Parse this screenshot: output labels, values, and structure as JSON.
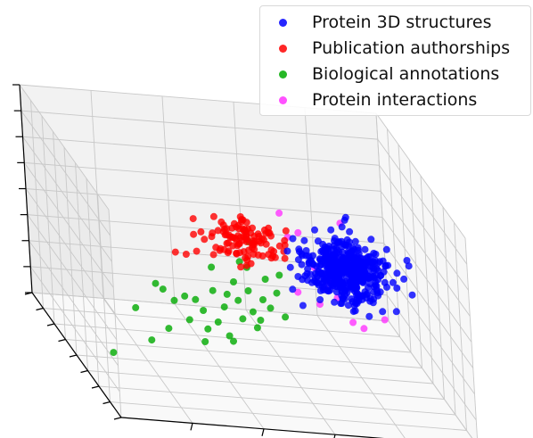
{
  "chart_data": {
    "type": "scatter",
    "projection": "3d",
    "grid": true,
    "legend_placement": "top-right",
    "title": "",
    "xlabel": "",
    "ylabel": "",
    "zlabel": "",
    "xlim": [
      0,
      10
    ],
    "ylim": [
      0,
      8
    ],
    "zlim": [
      0,
      8
    ],
    "series": [
      {
        "name": "Protein 3D structures",
        "color": "#0000ff",
        "cluster": {
          "center": [
            7.8,
            4.3,
            3.9
          ],
          "spread": [
            0.55,
            0.5,
            0.5
          ],
          "count": 460
        },
        "points": [
          [
            6.2,
            4.3,
            4.5
          ],
          [
            9.6,
            4.3,
            4.3
          ]
        ]
      },
      {
        "name": "Publication authorships",
        "color": "#ff0000",
        "cluster": {
          "center": [
            4.9,
            3.8,
            5.1
          ],
          "spread": [
            0.55,
            0.45,
            0.35
          ],
          "count": 110
        },
        "points": [
          [
            2.9,
            3.8,
            4.4
          ],
          [
            3.2,
            3.8,
            4.35
          ],
          [
            3.5,
            3.8,
            4.5
          ]
        ]
      },
      {
        "name": "Biological annotations",
        "color": "#00aa00",
        "points": [
          [
            1.6,
            3.5,
            2.3
          ],
          [
            2.0,
            3.5,
            1.1
          ],
          [
            2.2,
            3.5,
            3.3
          ],
          [
            2.5,
            3.5,
            1.6
          ],
          [
            2.7,
            3.5,
            2.7
          ],
          [
            3.1,
            3.5,
            2.0
          ],
          [
            3.3,
            3.5,
            2.8
          ],
          [
            3.5,
            3.5,
            2.4
          ],
          [
            3.6,
            3.5,
            1.7
          ],
          [
            3.8,
            3.5,
            3.2
          ],
          [
            3.9,
            3.5,
            2.0
          ],
          [
            4.1,
            3.5,
            2.6
          ],
          [
            4.2,
            3.5,
            1.5
          ],
          [
            4.4,
            3.5,
            3.6
          ],
          [
            4.5,
            3.5,
            2.9
          ],
          [
            4.6,
            3.5,
            2.2
          ],
          [
            4.8,
            3.5,
            3.3
          ],
          [
            4.9,
            3.5,
            2.5
          ],
          [
            5.0,
            3.5,
            1.9
          ],
          [
            5.2,
            3.5,
            3.0
          ],
          [
            5.3,
            3.5,
            3.8
          ],
          [
            5.4,
            3.5,
            2.7
          ],
          [
            5.6,
            3.5,
            3.3
          ],
          [
            5.8,
            3.5,
            2.4
          ],
          [
            4.6,
            3.5,
            4.4
          ],
          [
            4.8,
            3.5,
            4.2
          ],
          [
            3.8,
            3.5,
            4.1
          ],
          [
            5.1,
            3.5,
            2.2
          ],
          [
            4.3,
            3.5,
            1.3
          ],
          [
            3.5,
            3.5,
            1.2
          ],
          [
            0.9,
            3.5,
            0.5
          ],
          [
            4.9,
            3.5,
            5.2
          ],
          [
            4.2,
            3.5,
            3.1
          ],
          [
            3.0,
            3.5,
            2.9
          ],
          [
            2.4,
            3.5,
            3.1
          ],
          [
            5.7,
            3.5,
            4.0
          ]
        ]
      },
      {
        "name": "Protein interactions",
        "color": "#ff33ff",
        "points": [
          [
            5.8,
            3.5,
            6.4
          ],
          [
            6.3,
            3.5,
            5.7
          ],
          [
            6.0,
            3.5,
            5.5
          ],
          [
            7.5,
            3.5,
            6.2
          ],
          [
            6.7,
            3.5,
            4.4
          ],
          [
            7.1,
            3.5,
            3.9
          ],
          [
            7.0,
            3.5,
            3.6
          ],
          [
            7.3,
            3.5,
            3.3
          ],
          [
            6.2,
            3.5,
            3.4
          ],
          [
            7.7,
            3.5,
            2.4
          ],
          [
            6.8,
            3.5,
            3.0
          ],
          [
            8.0,
            3.5,
            2.2
          ],
          [
            8.6,
            3.5,
            2.6
          ],
          [
            7.3,
            3.5,
            4.8
          ]
        ]
      }
    ]
  }
}
